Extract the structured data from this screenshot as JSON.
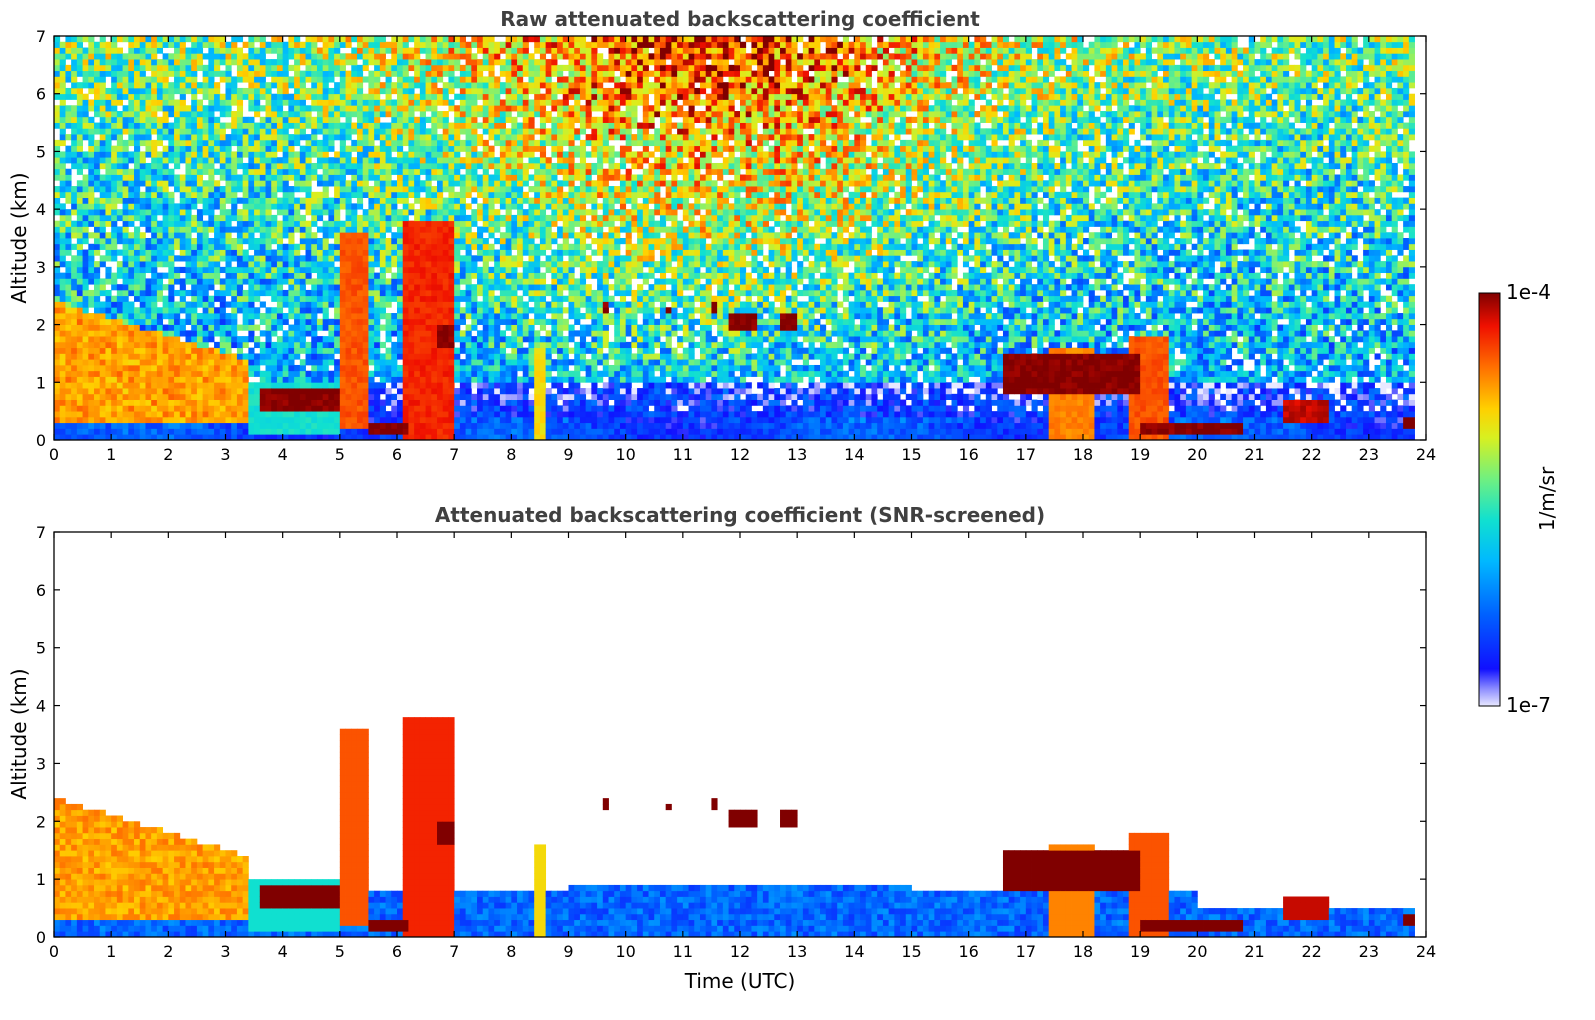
{
  "chart_data": [
    {
      "type": "heatmap",
      "title": "Raw attenuated backscattering coefficient",
      "xlabel": "",
      "ylabel": "Altitude (km)",
      "xlim": [
        0,
        24
      ],
      "ylim": [
        0,
        7
      ],
      "xticks": [
        "0",
        "1",
        "2",
        "3",
        "4",
        "5",
        "6",
        "7",
        "8",
        "9",
        "10",
        "11",
        "12",
        "13",
        "14",
        "15",
        "16",
        "17",
        "18",
        "19",
        "20",
        "21",
        "22",
        "23",
        "24"
      ],
      "yticks": [
        "0",
        "1",
        "2",
        "3",
        "4",
        "5",
        "6",
        "7"
      ],
      "data_end_hour": 23.8,
      "features": [
        {
          "kind": "aerosol",
          "t0": 0.0,
          "t1": 3.4,
          "z0": 0.3,
          "z1": 2.4,
          "level": 0.78
        },
        {
          "kind": "aerosol",
          "t0": 3.4,
          "t1": 5.0,
          "z0": 0.1,
          "z1": 1.0,
          "level": 0.45
        },
        {
          "kind": "cloud",
          "t0": 3.6,
          "t1": 5.0,
          "z0": 0.5,
          "z1": 0.9,
          "level": 1.0
        },
        {
          "kind": "cloud",
          "t0": 5.0,
          "t1": 5.5,
          "z0": 0.2,
          "z1": 3.6,
          "level": 0.85
        },
        {
          "kind": "cloud",
          "t0": 5.5,
          "t1": 6.2,
          "z0": 0.1,
          "z1": 0.35,
          "level": 1.0
        },
        {
          "kind": "cloud",
          "t0": 6.1,
          "t1": 7.0,
          "z0": 0.0,
          "z1": 3.8,
          "level": 0.9
        },
        {
          "kind": "cloud",
          "t0": 6.7,
          "t1": 7.0,
          "z0": 1.6,
          "z1": 2.0,
          "level": 1.0
        },
        {
          "kind": "cloud",
          "t0": 8.4,
          "t1": 8.55,
          "z0": 0.0,
          "z1": 1.6,
          "level": 0.7
        },
        {
          "kind": "cloud",
          "t0": 9.6,
          "t1": 9.7,
          "z0": 2.2,
          "z1": 2.4,
          "level": 1.0
        },
        {
          "kind": "cloud",
          "t0": 10.7,
          "t1": 10.8,
          "z0": 2.2,
          "z1": 2.3,
          "level": 1.0
        },
        {
          "kind": "cloud",
          "t0": 11.5,
          "t1": 11.6,
          "z0": 2.2,
          "z1": 2.4,
          "level": 1.0
        },
        {
          "kind": "cloud",
          "t0": 11.8,
          "t1": 12.3,
          "z0": 1.95,
          "z1": 2.2,
          "level": 1.0
        },
        {
          "kind": "cloud",
          "t0": 12.7,
          "t1": 13.0,
          "z0": 1.95,
          "z1": 2.15,
          "level": 1.0
        },
        {
          "kind": "cloud",
          "t0": 16.6,
          "t1": 19.0,
          "z0": 0.8,
          "z1": 1.5,
          "level": 1.0
        },
        {
          "kind": "cloud",
          "t0": 17.4,
          "t1": 18.2,
          "z0": 0.0,
          "z1": 1.6,
          "level": 0.8
        },
        {
          "kind": "cloud",
          "t0": 18.8,
          "t1": 19.5,
          "z0": 0.0,
          "z1": 1.8,
          "level": 0.85
        },
        {
          "kind": "cloud",
          "t0": 19.0,
          "t1": 20.8,
          "z0": 0.15,
          "z1": 0.3,
          "level": 1.0
        },
        {
          "kind": "cloud",
          "t0": 21.5,
          "t1": 22.3,
          "z0": 0.3,
          "z1": 0.7,
          "level": 0.95
        },
        {
          "kind": "cloud",
          "t0": 23.6,
          "t1": 23.8,
          "z0": 0.2,
          "z1": 0.4,
          "level": 1.0
        }
      ]
    },
    {
      "type": "heatmap",
      "title": "Attenuated backscattering coefficient (SNR-screened)",
      "xlabel": "Time (UTC)",
      "ylabel": "Altitude (km)",
      "xlim": [
        0,
        24
      ],
      "ylim": [
        0,
        7
      ],
      "xticks": [
        "0",
        "1",
        "2",
        "3",
        "4",
        "5",
        "6",
        "7",
        "8",
        "9",
        "10",
        "11",
        "12",
        "13",
        "14",
        "15",
        "16",
        "17",
        "18",
        "19",
        "20",
        "21",
        "22",
        "23",
        "24"
      ],
      "yticks": [
        "0",
        "1",
        "2",
        "3",
        "4",
        "5",
        "6",
        "7"
      ],
      "data_end_hour": 23.8,
      "screened": true
    }
  ],
  "colorbar": {
    "label": "1/m/sr",
    "max_label": "1e-4",
    "min_label": "1e-7",
    "colormap": "jet"
  }
}
